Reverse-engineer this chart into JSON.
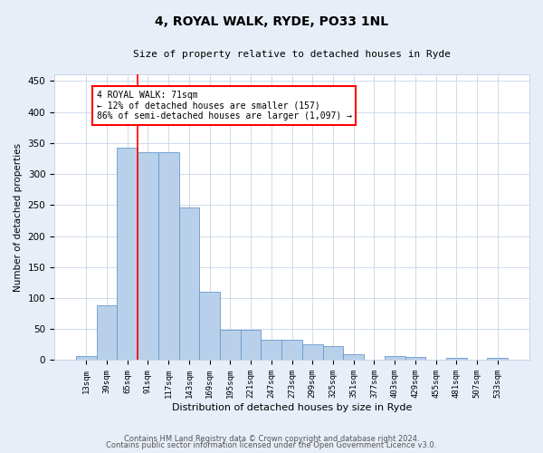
{
  "title": "4, ROYAL WALK, RYDE, PO33 1NL",
  "subtitle": "Size of property relative to detached houses in Ryde",
  "xlabel": "Distribution of detached houses by size in Ryde",
  "ylabel": "Number of detached properties",
  "footnote1": "Contains HM Land Registry data © Crown copyright and database right 2024.",
  "footnote2": "Contains public sector information licensed under the Open Government Licence v3.0.",
  "bar_labels": [
    "13sqm",
    "39sqm",
    "65sqm",
    "91sqm",
    "117sqm",
    "143sqm",
    "169sqm",
    "195sqm",
    "221sqm",
    "247sqm",
    "273sqm",
    "299sqm",
    "325sqm",
    "351sqm",
    "377sqm",
    "403sqm",
    "429sqm",
    "455sqm",
    "481sqm",
    "507sqm",
    "533sqm"
  ],
  "bar_values": [
    7,
    88,
    342,
    335,
    335,
    246,
    110,
    49,
    49,
    33,
    33,
    25,
    22,
    10,
    0,
    6,
    5,
    0,
    4,
    0,
    4
  ],
  "bar_color": "#b8d0ea",
  "bar_edge_color": "#6699cc",
  "ylim": [
    0,
    460
  ],
  "yticks": [
    0,
    50,
    100,
    150,
    200,
    250,
    300,
    350,
    400,
    450
  ],
  "red_line_index": 2,
  "annotation_text": "4 ROYAL WALK: 71sqm\n← 12% of detached houses are smaller (157)\n86% of semi-detached houses are larger (1,097) →",
  "bg_color": "#e8eef8",
  "plot_bg_color": "#ffffff"
}
